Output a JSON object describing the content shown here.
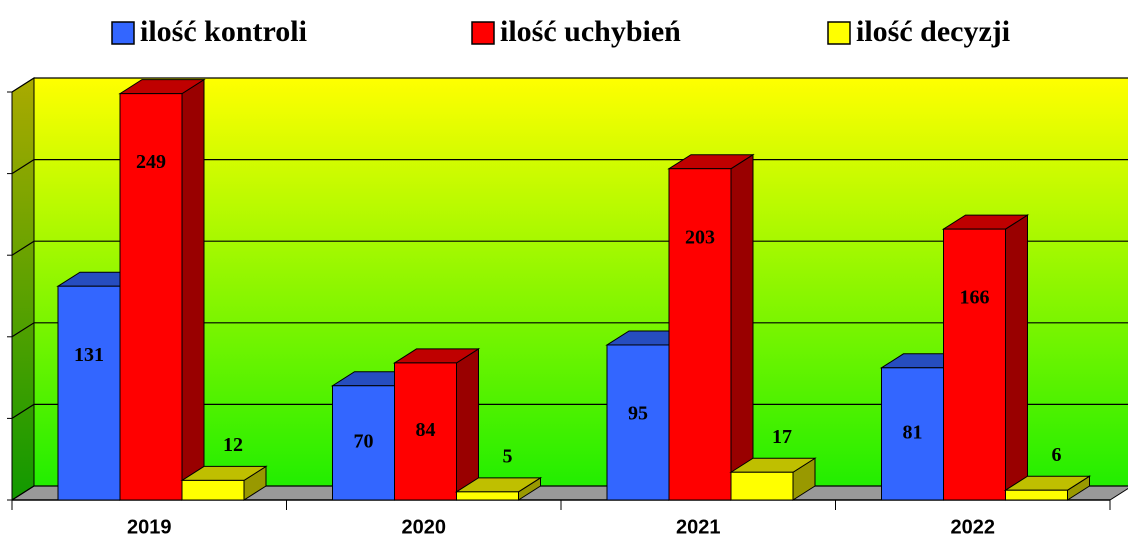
{
  "chart_data": {
    "type": "bar3d",
    "categories": [
      "2019",
      "2020",
      "2021",
      "2022"
    ],
    "series": [
      {
        "name": "ilość kontroli",
        "color": "#3366ff",
        "values": [
          131,
          70,
          95,
          81
        ]
      },
      {
        "name": "ilość uchybień",
        "color": "#ff0000",
        "values": [
          249,
          84,
          203,
          166
        ]
      },
      {
        "name": "ilość decyzji",
        "color": "#ffff00",
        "values": [
          12,
          5,
          17,
          6
        ]
      }
    ],
    "ylim": [
      0,
      250
    ],
    "yticks": [
      0,
      50,
      100,
      150,
      200,
      250
    ],
    "grid": true,
    "legend": "top"
  }
}
